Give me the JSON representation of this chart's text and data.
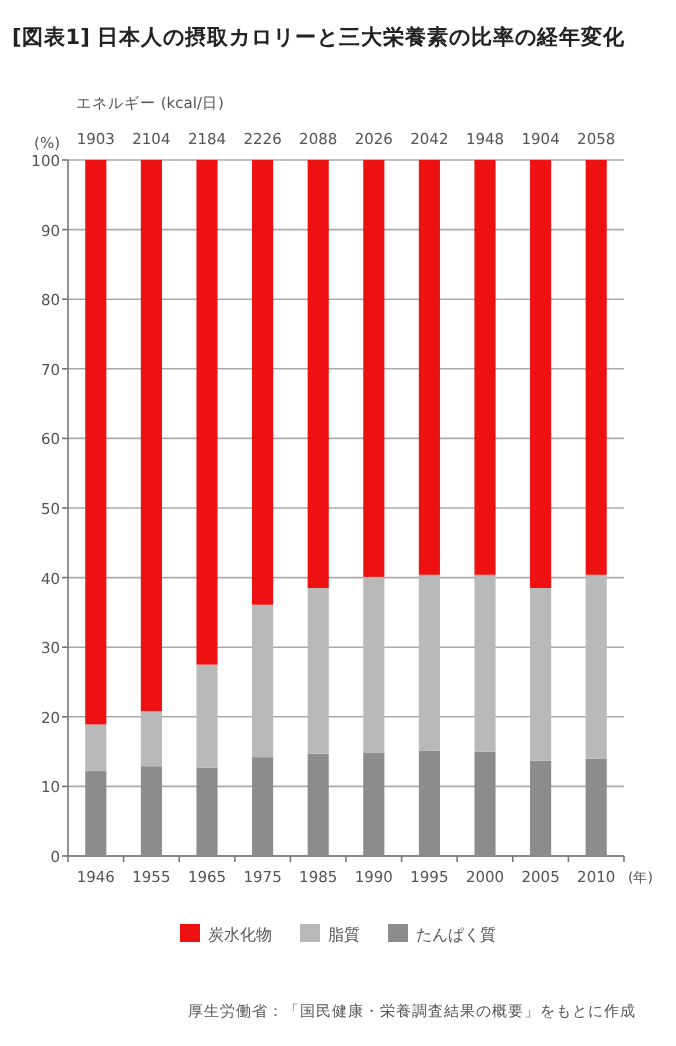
{
  "chart_data": {
    "type": "bar",
    "stacked": true,
    "title": "[図表1] 日本人の摂取カロリーと三大栄養素の比率の経年変化",
    "ylabel": "(%)",
    "xlabel": "(年)",
    "categories": [
      "1946",
      "1955",
      "1965",
      "1975",
      "1985",
      "1990",
      "1995",
      "2000",
      "2005",
      "2010"
    ],
    "series": [
      {
        "name": "たんぱく質",
        "color": "#8c8c8c",
        "values": [
          12.2,
          12.9,
          12.7,
          14.2,
          14.7,
          14.8,
          15.1,
          15.0,
          13.7,
          14.0
        ]
      },
      {
        "name": "脂質",
        "color": "#b9b9b9",
        "values": [
          6.7,
          7.9,
          14.8,
          21.9,
          23.8,
          25.3,
          25.3,
          25.4,
          24.8,
          26.4
        ]
      },
      {
        "name": "炭水化物",
        "color": "#ee1111",
        "values": [
          81.1,
          79.2,
          72.5,
          63.9,
          61.5,
          59.9,
          59.6,
          59.6,
          61.5,
          59.6
        ]
      }
    ],
    "ylim": [
      0,
      100
    ],
    "yticks": [
      0,
      10,
      20,
      30,
      40,
      50,
      60,
      70,
      80,
      90,
      100
    ],
    "grid": "y",
    "legend": "bottom",
    "annotations": [
      "エネルギー (kcal/日)",
      "1903",
      "2104",
      "2184",
      "2226",
      "2088",
      "2026",
      "2042",
      "1948",
      "1904",
      "2058",
      "厚生労働省：「国民健康・栄養調査結果の概要」をもとに作成"
    ]
  }
}
